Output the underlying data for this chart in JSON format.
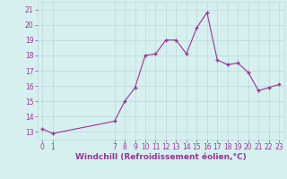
{
  "x": [
    0,
    1,
    7,
    8,
    9,
    10,
    11,
    12,
    13,
    14,
    15,
    16,
    17,
    18,
    19,
    20,
    21,
    22,
    23
  ],
  "y": [
    13.2,
    12.9,
    13.7,
    15.0,
    15.9,
    18.0,
    18.1,
    19.0,
    19.0,
    18.1,
    19.8,
    20.8,
    17.7,
    17.4,
    17.5,
    16.9,
    15.7,
    15.9,
    16.1
  ],
  "line_color": "#993399",
  "marker": "+",
  "marker_size": 3,
  "marker_linewidth": 1.0,
  "line_width": 0.8,
  "bg_color": "#d6f0ef",
  "grid_color": "#b8d8d8",
  "xlabel": "Windchill (Refroidissement éolien,°C)",
  "xlabel_fontsize": 6.5,
  "tick_fontsize": 5.5,
  "yticks": [
    13,
    14,
    15,
    16,
    17,
    18,
    19,
    20,
    21
  ],
  "xticks": [
    0,
    1,
    7,
    8,
    9,
    10,
    11,
    12,
    13,
    14,
    15,
    16,
    17,
    18,
    19,
    20,
    21,
    22,
    23
  ],
  "ylim": [
    12.5,
    21.5
  ],
  "xlim": [
    -0.5,
    23.5
  ]
}
